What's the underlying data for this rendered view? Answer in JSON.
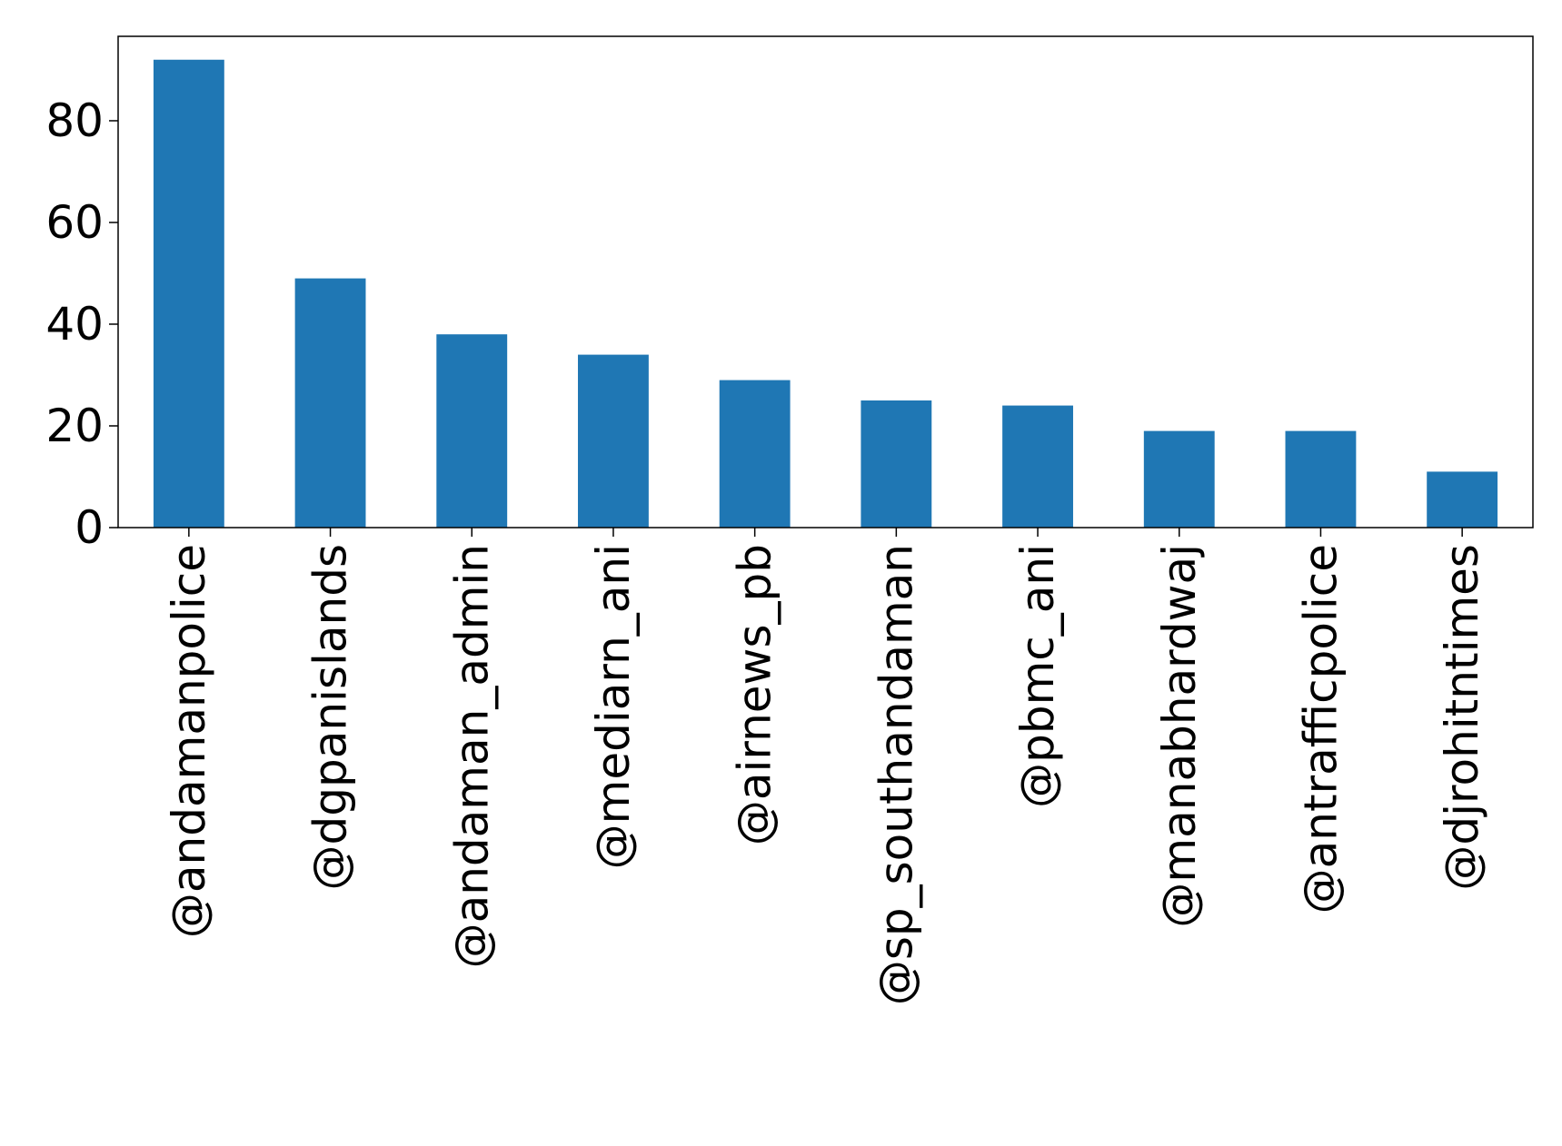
{
  "chart_data": {
    "type": "bar",
    "categories": [
      "@andamanpolice",
      "@dgpanislands",
      "@andaman_admin",
      "@mediarn_ani",
      "@airnews_pb",
      "@sp_southandaman",
      "@pbmc_ani",
      "@manabhardwaj",
      "@antrafficpolice",
      "@djrohitntimes"
    ],
    "values": [
      92,
      49,
      38,
      34,
      29,
      25,
      24,
      19,
      19,
      11
    ],
    "yticks": [
      0,
      20,
      40,
      60,
      80
    ],
    "ylim": [
      0,
      96.6
    ],
    "title": "",
    "xlabel": "",
    "ylabel": "",
    "grid": false,
    "colors": {
      "bar": "#1f77b4",
      "axis": "#000000"
    }
  }
}
